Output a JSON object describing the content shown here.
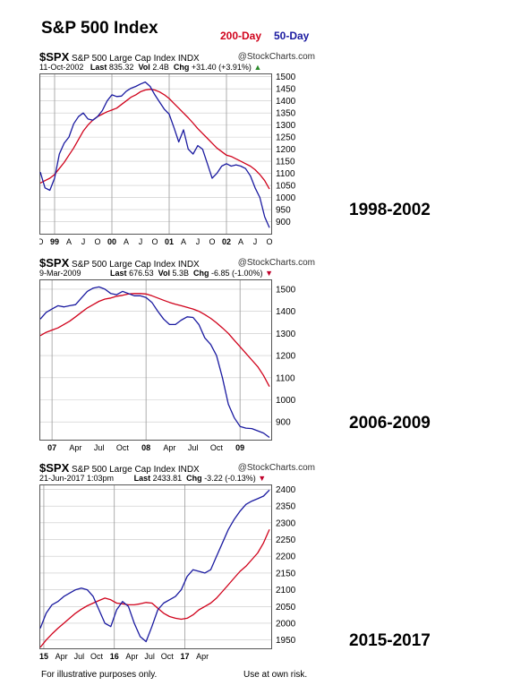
{
  "title": "S&P 500 Index",
  "legend": {
    "ma200": "200-Day",
    "ma50": "50-Day"
  },
  "colors": {
    "ma200": "#d0021b",
    "ma50": "#1a1aa0",
    "grid": "#c8c8c8",
    "frame": "#555555"
  },
  "footer": {
    "left": "For illustrative purposes only.",
    "right": "Use at own risk."
  },
  "panels": [
    {
      "symbol": "$SPX",
      "name": "S&P 500 Large Cap Index",
      "exchange": "INDX",
      "source": "@StockCharts.com",
      "date": "11-Oct-2002",
      "last_label": "Last",
      "last": "835.32",
      "vol_label": "Vol",
      "vol": "2.4B",
      "chg_label": "Chg",
      "chg": "+31.40 (+3.91%)",
      "arrow": "▲",
      "range_label": "1998-2002"
    },
    {
      "symbol": "$SPX",
      "name": "S&P 500 Large Cap Index",
      "exchange": "INDX",
      "source": "@StockCharts.com",
      "date": "9-Mar-2009",
      "last_label": "Last",
      "last": "676.53",
      "vol_label": "Vol",
      "vol": "5.3B",
      "chg_label": "Chg",
      "chg": "-6.85 (-1.00%)",
      "arrow": "▼",
      "range_label": "2006-2009"
    },
    {
      "symbol": "$SPX",
      "name": "S&P 500 Large Cap Index",
      "exchange": "INDX",
      "source": "@StockCharts.com",
      "date": "21-Jun-2017 1:03pm",
      "last_label": "Last",
      "last": "2433.81",
      "vol_label": "",
      "vol": "",
      "chg_label": "Chg",
      "chg": "-3.22 (-0.13%)",
      "arrow": "▼",
      "range_label": "2015-2017"
    }
  ],
  "chart_data": [
    {
      "type": "line",
      "x": [
        0,
        1,
        2,
        3,
        4,
        5,
        6,
        7,
        8,
        9,
        10,
        11,
        12,
        13,
        14,
        15,
        16,
        17,
        18,
        19,
        20,
        21,
        22,
        23,
        24,
        25,
        26,
        27,
        28,
        29,
        30,
        31,
        32,
        33,
        34,
        35,
        36,
        37,
        38,
        39,
        40,
        41,
        42,
        43,
        44,
        45,
        46,
        47,
        48
      ],
      "x_ticks": [
        {
          "x": 0,
          "label": "O"
        },
        {
          "x": 3,
          "label": "99",
          "bold": true
        },
        {
          "x": 6,
          "label": "A"
        },
        {
          "x": 9,
          "label": "J"
        },
        {
          "x": 12,
          "label": "O"
        },
        {
          "x": 15,
          "label": "00",
          "bold": true
        },
        {
          "x": 18,
          "label": "A"
        },
        {
          "x": 21,
          "label": "J"
        },
        {
          "x": 24,
          "label": "O"
        },
        {
          "x": 27,
          "label": "01",
          "bold": true
        },
        {
          "x": 30,
          "label": "A"
        },
        {
          "x": 33,
          "label": "J"
        },
        {
          "x": 36,
          "label": "O"
        },
        {
          "x": 39,
          "label": "02",
          "bold": true
        },
        {
          "x": 42,
          "label": "A"
        },
        {
          "x": 45,
          "label": "J"
        },
        {
          "x": 48,
          "label": "O"
        }
      ],
      "year_lines": [
        3,
        15,
        27,
        39
      ],
      "ylim": [
        850,
        1510
      ],
      "y_ticks": [
        900,
        950,
        1000,
        1050,
        1100,
        1150,
        1200,
        1250,
        1300,
        1350,
        1400,
        1450,
        1500
      ],
      "series": [
        {
          "name": "200-Day",
          "color_key": "ma200",
          "values": [
            1060,
            1070,
            1080,
            1095,
            1120,
            1145,
            1175,
            1205,
            1240,
            1275,
            1300,
            1320,
            1335,
            1345,
            1355,
            1362,
            1370,
            1385,
            1400,
            1415,
            1425,
            1438,
            1445,
            1448,
            1445,
            1437,
            1425,
            1410,
            1390,
            1370,
            1350,
            1330,
            1308,
            1285,
            1265,
            1245,
            1225,
            1205,
            1190,
            1175,
            1170,
            1160,
            1150,
            1140,
            1130,
            1115,
            1095,
            1070,
            1035
          ]
        },
        {
          "name": "50-Day",
          "color_key": "ma50",
          "values": [
            1105,
            1040,
            1030,
            1080,
            1180,
            1225,
            1250,
            1305,
            1335,
            1350,
            1325,
            1320,
            1335,
            1360,
            1400,
            1425,
            1418,
            1420,
            1440,
            1452,
            1460,
            1470,
            1478,
            1460,
            1425,
            1395,
            1365,
            1345,
            1290,
            1230,
            1280,
            1200,
            1180,
            1215,
            1200,
            1140,
            1080,
            1100,
            1130,
            1140,
            1130,
            1135,
            1130,
            1120,
            1090,
            1040,
            1000,
            920,
            875
          ]
        }
      ]
    },
    {
      "type": "line",
      "x": [
        0,
        1,
        2,
        3,
        4,
        5,
        6,
        7,
        8,
        9,
        10,
        11,
        12,
        13,
        14,
        15,
        16,
        17,
        18,
        19,
        20,
        21,
        22,
        23,
        24,
        25,
        26,
        27,
        28,
        29,
        30,
        31,
        32,
        33,
        34,
        35,
        36,
        37,
        38,
        39
      ],
      "x_ticks": [
        {
          "x": 2,
          "label": "07",
          "bold": true
        },
        {
          "x": 6,
          "label": "Apr"
        },
        {
          "x": 10,
          "label": "Jul"
        },
        {
          "x": 14,
          "label": "Oct"
        },
        {
          "x": 18,
          "label": "08",
          "bold": true
        },
        {
          "x": 22,
          "label": "Apr"
        },
        {
          "x": 26,
          "label": "Jul"
        },
        {
          "x": 30,
          "label": "Oct"
        },
        {
          "x": 34,
          "label": "09",
          "bold": true
        }
      ],
      "year_lines": [
        2,
        18,
        34
      ],
      "ylim": [
        820,
        1540
      ],
      "y_ticks": [
        900,
        1000,
        1100,
        1200,
        1300,
        1400,
        1500
      ],
      "series": [
        {
          "name": "200-Day",
          "color_key": "ma200",
          "values": [
            1290,
            1305,
            1315,
            1325,
            1340,
            1355,
            1375,
            1395,
            1415,
            1430,
            1445,
            1455,
            1460,
            1468,
            1472,
            1478,
            1480,
            1480,
            1478,
            1470,
            1460,
            1450,
            1440,
            1432,
            1425,
            1418,
            1410,
            1400,
            1385,
            1368,
            1348,
            1325,
            1300,
            1270,
            1240,
            1210,
            1180,
            1150,
            1110,
            1060
          ]
        },
        {
          "name": "50-Day",
          "color_key": "ma50",
          "values": [
            1365,
            1395,
            1410,
            1425,
            1420,
            1425,
            1430,
            1460,
            1490,
            1505,
            1510,
            1500,
            1480,
            1475,
            1490,
            1480,
            1470,
            1470,
            1462,
            1440,
            1400,
            1365,
            1340,
            1340,
            1360,
            1375,
            1372,
            1340,
            1280,
            1250,
            1200,
            1100,
            980,
            920,
            880,
            872,
            870,
            860,
            850,
            830
          ]
        }
      ]
    },
    {
      "type": "line",
      "x": [
        0,
        1,
        2,
        3,
        4,
        5,
        6,
        7,
        8,
        9,
        10,
        11,
        12,
        13,
        14,
        15,
        16,
        17,
        18,
        19,
        20,
        21,
        22,
        23,
        24,
        25,
        26,
        27,
        28,
        29,
        30,
        31,
        32,
        33,
        34,
        35,
        36,
        37,
        38,
        39
      ],
      "x_ticks": [
        {
          "x": 0.6,
          "label": "15",
          "bold": true
        },
        {
          "x": 3.6,
          "label": "Apr"
        },
        {
          "x": 6.6,
          "label": "Jul"
        },
        {
          "x": 9.6,
          "label": "Oct"
        },
        {
          "x": 12.6,
          "label": "16",
          "bold": true
        },
        {
          "x": 15.6,
          "label": "Apr"
        },
        {
          "x": 18.6,
          "label": "Jul"
        },
        {
          "x": 21.6,
          "label": "Oct"
        },
        {
          "x": 24.6,
          "label": "17",
          "bold": true
        },
        {
          "x": 27.6,
          "label": "Apr"
        }
      ],
      "year_lines": [
        0.6,
        12.6,
        24.6
      ],
      "ylim": [
        1925,
        2412
      ],
      "y_ticks": [
        1950,
        2000,
        2050,
        2100,
        2150,
        2200,
        2250,
        2300,
        2350,
        2400
      ],
      "series": [
        {
          "name": "200-Day",
          "color_key": "ma200",
          "values": [
            1928,
            1950,
            1968,
            1985,
            2000,
            2015,
            2030,
            2042,
            2052,
            2060,
            2068,
            2075,
            2070,
            2060,
            2058,
            2055,
            2055,
            2058,
            2062,
            2060,
            2045,
            2030,
            2020,
            2015,
            2012,
            2015,
            2025,
            2040,
            2050,
            2060,
            2075,
            2095,
            2115,
            2135,
            2155,
            2170,
            2190,
            2210,
            2240,
            2280
          ]
        },
        {
          "name": "50-Day",
          "color_key": "ma50",
          "values": [
            1985,
            2030,
            2055,
            2065,
            2080,
            2090,
            2100,
            2105,
            2100,
            2080,
            2040,
            2000,
            1990,
            2040,
            2065,
            2050,
            2000,
            1960,
            1945,
            1990,
            2040,
            2060,
            2070,
            2080,
            2100,
            2140,
            2160,
            2155,
            2150,
            2160,
            2200,
            2240,
            2280,
            2310,
            2335,
            2355,
            2365,
            2372,
            2380,
            2398
          ]
        }
      ]
    }
  ]
}
